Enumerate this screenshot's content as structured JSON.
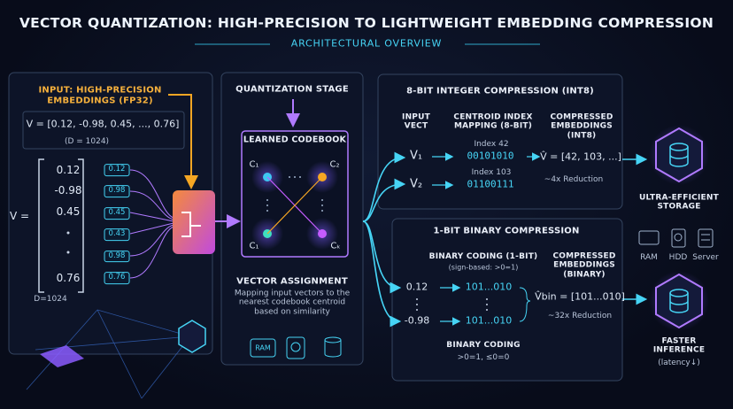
{
  "header": {
    "title": "VECTOR QUANTIZATION: HIGH-PRECISION TO LIGHTWEIGHT EMBEDDING COMPRESSION",
    "subtitle": "ARCHITECTURAL OVERVIEW"
  },
  "input": {
    "title": "INPUT: HIGH-PRECISION EMBEDDINGS (FP32)",
    "formula": "V = [0.12, -0.98, 0.45, ..., 0.76]",
    "dimension": "(D = 1024)",
    "vector_label": "V =",
    "values": [
      "0.12",
      "-0.98",
      "0.45",
      "0.76"
    ],
    "chips": [
      "0.12",
      "0.98",
      "0.45",
      "0.43",
      "0.98",
      "0.76"
    ],
    "footer": "D=1024"
  },
  "quantization": {
    "title": "QUANTIZATION STAGE",
    "codebook": "LEARNED CODEBOOK",
    "centroids": [
      "C₁",
      "C₂",
      "C₁",
      "Cₖ"
    ],
    "assignment_title": "VECTOR ASSIGNMENT",
    "assignment_text": "Mapping input vectors to the nearest codebook centroid based on similarity",
    "icon_label": "RAM"
  },
  "int8": {
    "title": "8-BIT INTEGER COMPRESSION (INT8)",
    "columns": [
      "INPUT VECT",
      "CENTROID INDEX MAPPING (8-BIT)",
      "COMPRESSED EMBEDDINGS (INT8)"
    ],
    "rows": [
      {
        "input": "V₁",
        "index": "Index 42",
        "code": "00101010"
      },
      {
        "input": "V₂",
        "index": "Index 103",
        "code": "01100111"
      }
    ],
    "result": "V̂ = [42, 103, ...]",
    "reduction": "~4x Reduction"
  },
  "binary": {
    "title": "1-BIT BINARY COMPRESSION",
    "coding_title": "BINARY CODING (1-BIT)",
    "coding_rule": "(sign-based: >0=1)",
    "output_title": "COMPRESSED EMBEDDINGS (BINARY)",
    "rows": [
      {
        "input": "0.12",
        "code": "101...010"
      },
      {
        "input": "-0.98",
        "code": "101...010"
      }
    ],
    "result": "V̂bin = [101...010]",
    "reduction": "~32x Reduction",
    "footer_title": "BINARY CODING",
    "footer_rule": ">0=1, ≤0=0"
  },
  "outputs": {
    "storage": "ULTRA-EFFICIENT STORAGE",
    "devices": [
      "RAM",
      "HDD",
      "Server"
    ],
    "inference": "FASTER INFERENCE",
    "latency": "(latency↓)"
  }
}
